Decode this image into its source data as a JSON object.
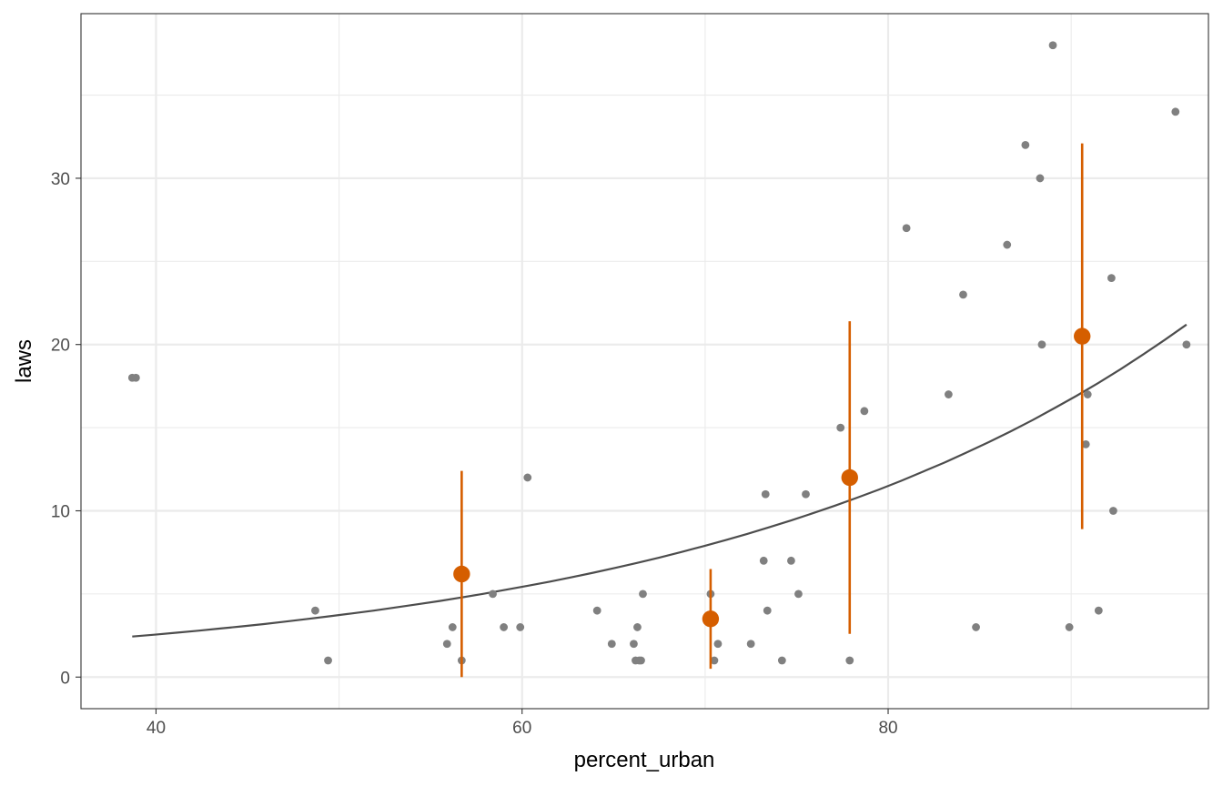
{
  "chart_data": {
    "type": "scatter",
    "title": "",
    "xlabel": "percent_urban",
    "ylabel": "laws",
    "xlim": [
      35.9,
      97.5
    ],
    "ylim": [
      -1.9,
      39.9
    ],
    "x_ticks": [
      40,
      60,
      80
    ],
    "x_tick_labels": [
      "40",
      "60",
      "80"
    ],
    "y_ticks": [
      0,
      10,
      20,
      30
    ],
    "y_tick_labels": [
      "0",
      "10",
      "20",
      "30"
    ],
    "x_minor_ticks": [
      50,
      70,
      90
    ],
    "y_minor_ticks": [
      5,
      15,
      25,
      35
    ],
    "grid": true,
    "colors": {
      "points": "#808080",
      "binned": "#d55e00",
      "curve": "#4d4d4d",
      "grid": "#ebebeb",
      "border": "#333333"
    },
    "points": [
      {
        "x": 38.7,
        "y": 18
      },
      {
        "x": 38.9,
        "y": 18
      },
      {
        "x": 48.7,
        "y": 4
      },
      {
        "x": 49.4,
        "y": 1
      },
      {
        "x": 55.9,
        "y": 2
      },
      {
        "x": 56.2,
        "y": 3
      },
      {
        "x": 56.7,
        "y": 1
      },
      {
        "x": 58.4,
        "y": 5
      },
      {
        "x": 59.0,
        "y": 3
      },
      {
        "x": 59.9,
        "y": 3
      },
      {
        "x": 60.3,
        "y": 12
      },
      {
        "x": 64.1,
        "y": 4
      },
      {
        "x": 64.9,
        "y": 2
      },
      {
        "x": 66.1,
        "y": 2
      },
      {
        "x": 66.2,
        "y": 1
      },
      {
        "x": 66.3,
        "y": 3
      },
      {
        "x": 66.4,
        "y": 1
      },
      {
        "x": 66.5,
        "y": 1
      },
      {
        "x": 66.6,
        "y": 5
      },
      {
        "x": 70.3,
        "y": 5
      },
      {
        "x": 70.5,
        "y": 1
      },
      {
        "x": 70.7,
        "y": 2
      },
      {
        "x": 72.5,
        "y": 2
      },
      {
        "x": 73.2,
        "y": 7
      },
      {
        "x": 73.3,
        "y": 11
      },
      {
        "x": 73.4,
        "y": 4
      },
      {
        "x": 74.2,
        "y": 1
      },
      {
        "x": 74.7,
        "y": 7
      },
      {
        "x": 75.1,
        "y": 5
      },
      {
        "x": 75.5,
        "y": 11
      },
      {
        "x": 77.4,
        "y": 15
      },
      {
        "x": 77.9,
        "y": 1
      },
      {
        "x": 78.7,
        "y": 16
      },
      {
        "x": 81.0,
        "y": 27
      },
      {
        "x": 83.3,
        "y": 17
      },
      {
        "x": 84.1,
        "y": 23
      },
      {
        "x": 84.8,
        "y": 3
      },
      {
        "x": 86.5,
        "y": 26
      },
      {
        "x": 87.5,
        "y": 32
      },
      {
        "x": 88.3,
        "y": 30
      },
      {
        "x": 88.4,
        "y": 20
      },
      {
        "x": 89.0,
        "y": 38
      },
      {
        "x": 89.9,
        "y": 3
      },
      {
        "x": 90.8,
        "y": 14
      },
      {
        "x": 90.9,
        "y": 17
      },
      {
        "x": 91.5,
        "y": 4
      },
      {
        "x": 92.2,
        "y": 24
      },
      {
        "x": 92.3,
        "y": 10
      },
      {
        "x": 95.7,
        "y": 34
      },
      {
        "x": 96.3,
        "y": 20
      }
    ],
    "binned": [
      {
        "x": 56.7,
        "y": 6.2,
        "ymin": 0.0,
        "ymax": 12.4
      },
      {
        "x": 70.3,
        "y": 3.5,
        "ymin": 0.5,
        "ymax": 6.5
      },
      {
        "x": 77.9,
        "y": 12.0,
        "ymin": 2.6,
        "ymax": 21.4
      },
      {
        "x": 90.6,
        "y": 20.5,
        "ymin": 8.9,
        "ymax": 32.1
      }
    ],
    "curve": {
      "x_range": [
        38.7,
        96.3
      ],
      "y_values": [
        2.44,
        2.55,
        2.67,
        2.79,
        2.92,
        3.05,
        3.19,
        3.34,
        3.5,
        3.66,
        3.83,
        4.0,
        4.19,
        4.38,
        4.58,
        4.79,
        5.01,
        5.25,
        5.49,
        5.74,
        6.0,
        6.28,
        6.57,
        6.87,
        7.19,
        7.52,
        7.87,
        8.23,
        8.61,
        9.01,
        9.42,
        9.86,
        10.31,
        10.79,
        11.28,
        11.8,
        12.35,
        12.91,
        13.51,
        14.13,
        14.78,
        15.46,
        16.18,
        16.92,
        17.7,
        18.52,
        19.38,
        20.27,
        21.2
      ]
    }
  }
}
